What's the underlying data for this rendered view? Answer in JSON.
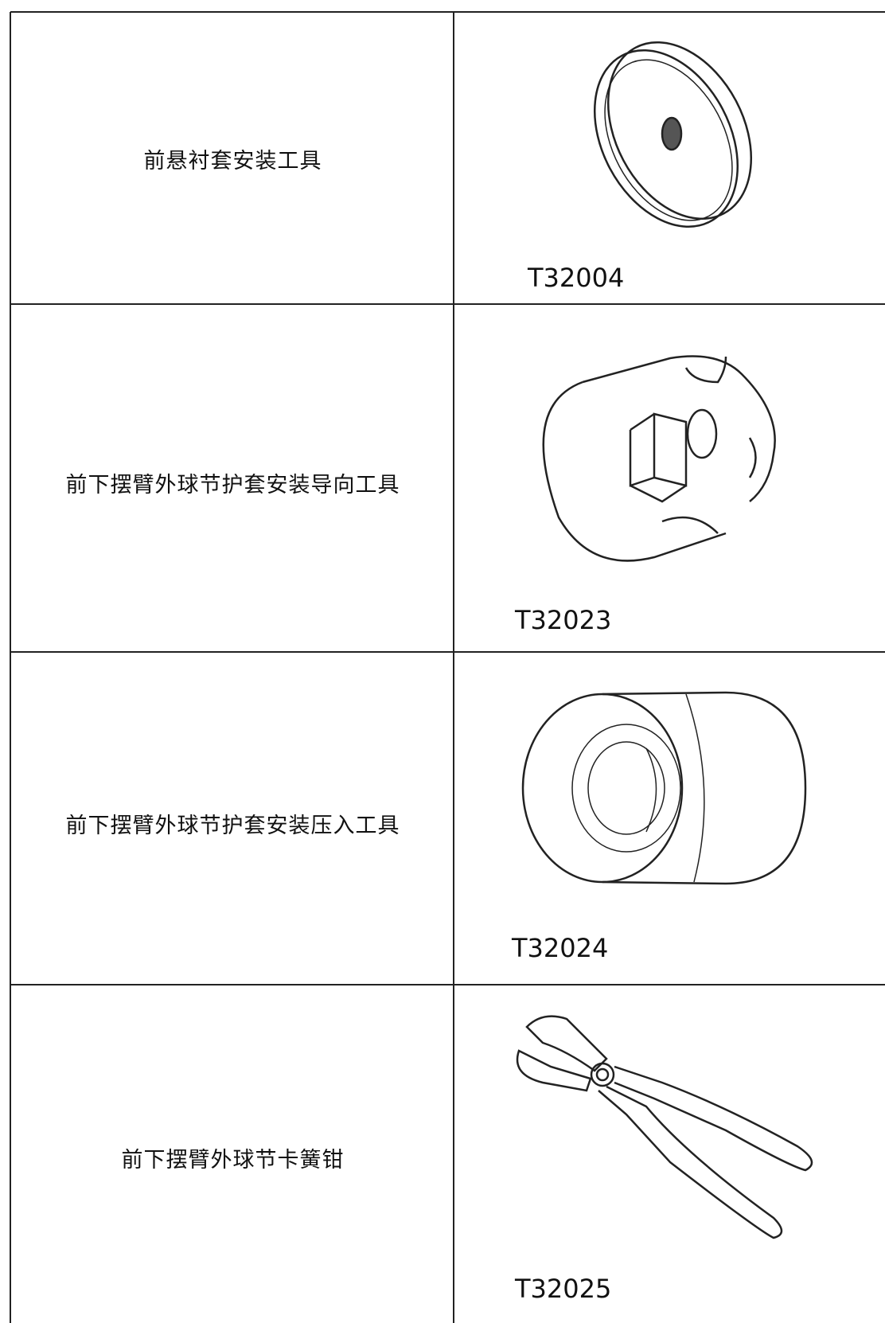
{
  "table": {
    "rows": [
      [
        "前悬衬套安装工具",
        "T32004"
      ],
      [
        "前下摆臂外球节护套安装导向工具",
        "T32023"
      ],
      [
        "前下摆臂外球节护套安装压入工具",
        "T32024"
      ],
      [
        "前下摆臂外球节卡簧钳",
        "T32025"
      ]
    ]
  }
}
